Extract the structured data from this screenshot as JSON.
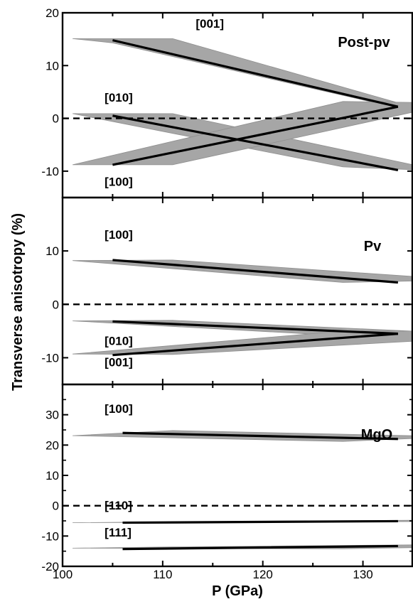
{
  "chart_data": {
    "type": "line",
    "ylabel": "Transverse anisotropy (%)",
    "xlabel": "P (GPa)",
    "xlim": [
      100,
      135
    ],
    "x_ticks": [
      "100",
      "110",
      "120",
      "130"
    ],
    "line_color": "#000000",
    "band_color": "#a6a6a6",
    "panels": [
      {
        "title": "Post-pv",
        "ylim": [
          -15,
          20
        ],
        "y_ticks": [
          "20",
          "10",
          "0",
          "-10"
        ],
        "zero_line": true,
        "series": [
          {
            "name": "[001]",
            "x": [
              105,
              133.5
            ],
            "y": [
              14.8,
              2.2
            ],
            "band": [
              [
                101,
                15.1
              ],
              [
                111,
                15.1
              ],
              [
                136,
                1.6
              ],
              [
                136,
                0.9
              ],
              [
                105,
                14.3
              ],
              [
                101,
                15.1
              ]
            ],
            "label_at": [
              113.3,
              17.2
            ]
          },
          {
            "name": "[010]",
            "x": [
              105,
              133.5
            ],
            "y": [
              0.5,
              -9.8
            ],
            "band": [
              [
                101,
                0.9
              ],
              [
                111,
                0.9
              ],
              [
                136,
                -9.2
              ],
              [
                136,
                -9.8
              ],
              [
                128,
                -9.2
              ],
              [
                101,
                0.9
              ]
            ],
            "label_at": [
              104.2,
              3.2
            ]
          },
          {
            "name": "[100]",
            "x": [
              105,
              133.5
            ],
            "y": [
              -8.8,
              2.2
            ],
            "band": [
              [
                101,
                -8.8
              ],
              [
                111,
                -8.8
              ],
              [
                136,
                1.6
              ],
              [
                136,
                3.0
              ],
              [
                128,
                3.2
              ],
              [
                101,
                -8.8
              ]
            ],
            "label_at": [
              104.2,
              -12.8
            ]
          }
        ]
      },
      {
        "title": "Pv",
        "ylim": [
          -15,
          20
        ],
        "y_ticks": [
          "10",
          "0",
          "-10"
        ],
        "zero_line": true,
        "series": [
          {
            "name": "[100]",
            "x": [
              105,
              133.5
            ],
            "y": [
              8.3,
              4.1
            ],
            "band": [
              [
                101,
                8.2
              ],
              [
                111,
                8.3
              ],
              [
                136,
                5.1
              ],
              [
                136,
                4.4
              ],
              [
                128,
                4.1
              ],
              [
                101,
                8.2
              ]
            ],
            "label_at": [
              104.2,
              12.3
            ]
          },
          {
            "name": "[010]",
            "x": [
              105,
              133.5
            ],
            "y": [
              -3.2,
              -5.5
            ],
            "band": [
              [
                101,
                -3.1
              ],
              [
                111,
                -3.0
              ],
              [
                136,
                -5.1
              ],
              [
                136,
                -5.8
              ],
              [
                128,
                -5.9
              ],
              [
                101,
                -3.1
              ]
            ],
            "label_at": [
              104.2,
              -7.6
            ]
          },
          {
            "name": "[001]",
            "x": [
              105,
              133.5
            ],
            "y": [
              -9.5,
              -5.5
            ],
            "band": [
              [
                101,
                -9.3
              ],
              [
                111,
                -9.4
              ],
              [
                136,
                -6.8
              ],
              [
                136,
                -5.0
              ],
              [
                128,
                -5.0
              ],
              [
                101,
                -9.3
              ]
            ],
            "label_at": [
              104.2,
              -11.6
            ]
          }
        ]
      },
      {
        "title": "MgO",
        "ylim": [
          -20,
          40
        ],
        "y_ticks": [
          "30",
          "20",
          "10",
          "0",
          "-10",
          "-20"
        ],
        "zero_line": true,
        "series": [
          {
            "name": "[100]",
            "x": [
              106,
              133.5
            ],
            "y": [
              24.0,
              22.0
            ],
            "band": [
              [
                101,
                23.1
              ],
              [
                111,
                24.8
              ],
              [
                136,
                23.0
              ],
              [
                136,
                22.3
              ],
              [
                128,
                21.2
              ],
              [
                101,
                23.1
              ]
            ],
            "label_at": [
              104.2,
              30.6
            ]
          },
          {
            "name": "[110]",
            "x": [
              106,
              133.5
            ],
            "y": [
              -5.6,
              -5.1
            ],
            "band": [
              [
                101,
                -5.6
              ],
              [
                111,
                -5.3
              ],
              [
                136,
                -4.8
              ],
              [
                136,
                -5.2
              ],
              [
                128,
                -5.3
              ],
              [
                101,
                -5.6
              ]
            ],
            "label_at": [
              104.2,
              -1.3
            ]
          },
          {
            "name": "[111]",
            "x": [
              106,
              133.5
            ],
            "y": [
              -14.3,
              -13.3
            ],
            "band": [
              [
                101,
                -14.0
              ],
              [
                111,
                -13.6
              ],
              [
                136,
                -12.9
              ],
              [
                136,
                -13.8
              ],
              [
                128,
                -14.2
              ],
              [
                101,
                -14.0
              ]
            ],
            "label_at": [
              104.2,
              -10.2
            ]
          }
        ]
      }
    ]
  }
}
